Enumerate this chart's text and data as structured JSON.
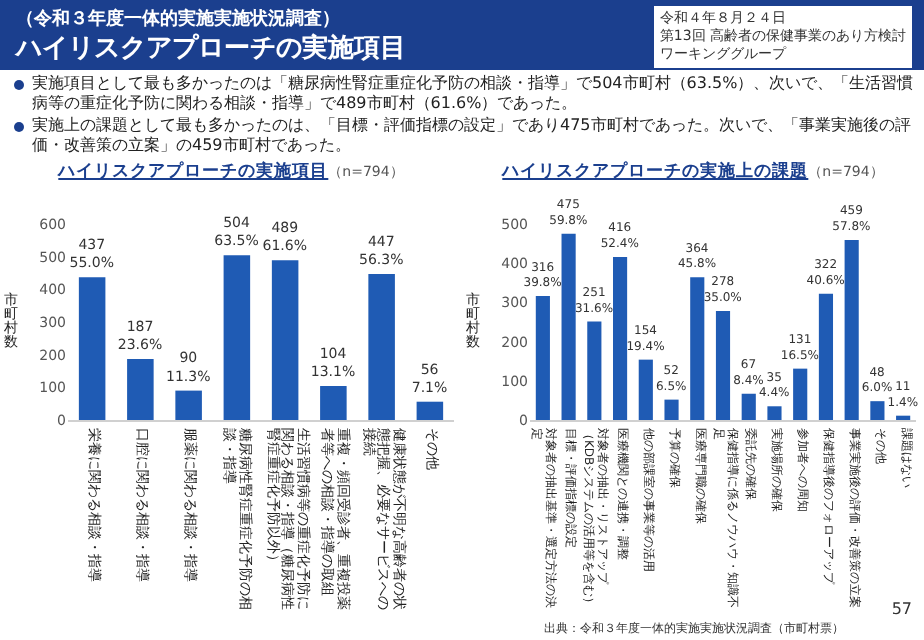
{
  "chart_data": [
    {
      "type": "bar",
      "title": "ハイリスクアプローチの実施項目",
      "subtitle": "（n=794）",
      "ylabel": "市町村数",
      "categories": [
        "栄養に関わる相談・指導",
        "口腔に関わる相談・指導",
        "服薬に関わる相談・指導",
        "糖尿病性腎症重症化予防の相談・指導",
        "生活習慣病等の重症化予防に関わる相談・指導（糖尿病性腎症重症化予防以外）",
        "重複・頻回受診者、重複投薬者等への相談・指導の取組",
        "健康状態が不明な高齢者の状態把握、必要なサービスへの接続",
        "その他"
      ],
      "values": [
        437,
        187,
        90,
        504,
        489,
        104,
        447,
        56
      ],
      "value_labels": [
        "437\n55.0%",
        "187\n23.6%",
        "90\n11.3%",
        "504\n63.5%",
        "489\n61.6%",
        "104\n13.1%",
        "447\n56.3%",
        "56\n7.1%"
      ],
      "color": "#1f5bb4",
      "ylim": [
        0,
        600
      ],
      "yticks": [
        0,
        100,
        200,
        300,
        400,
        500,
        600
      ],
      "annotations": [
        "（令和３年度一体的実施実施状況調査）",
        "ハイリスクアプローチの実施項目",
        "令和４年８月２４日",
        "第13回 高齢者の保健事業のあり方検討",
        "ワーキンググループ",
        "実施項目として最も多かったのは「糖尿病性腎症重症化予防の相談・指導」で504市町村（63.5%）、次いで、「生活習慣病等の重症化予防に関わる相談・指導」で489市町村（61.6%）であった。",
        "実施上の課題として最も多かったのは、「目標・評価指標の設定」であり475市町村であった。次いで、「事業実施後の評価・改善策の立案」の459市町村であった。"
      ]
    },
    {
      "type": "bar",
      "title": "ハイリスクアプローチの実施上の課題",
      "subtitle": "（n=794）",
      "ylabel": "市町村数",
      "categories": [
        "対象者の抽出基準・選定方法の決定",
        "目標・評価指標の設定",
        "対象者の抽出・リストアップ（KDBシステムの活用等を含む）",
        "医療機関との連携・調整",
        "他の部課室の事業等の活用",
        "予算の確保",
        "医療専門職の確保",
        "保健指導に係るノウハウ・知識不足",
        "委託先の確保",
        "実施場所の確保",
        "参加者への周知",
        "保健指導後のフォローアップ",
        "事業実施後の評価・改善策の立案",
        "その他",
        "課題はない"
      ],
      "values": [
        316,
        475,
        251,
        416,
        154,
        52,
        364,
        278,
        67,
        35,
        131,
        322,
        459,
        48,
        11
      ],
      "value_labels": [
        "316\n39.8%",
        "475\n59.8%",
        "251\n31.6%",
        "416\n52.4%",
        "154\n19.4%",
        "52\n6.5%",
        "364\n45.8%",
        "278\n35.0%",
        "67\n8.4%",
        "35\n4.4%",
        "131\n16.5%",
        "322\n40.6%",
        "459\n57.8%",
        "48\n6.0%",
        "11\n1.4%"
      ],
      "color": "#1f5bb4",
      "ylim": [
        0,
        500
      ],
      "yticks": [
        0,
        100,
        200,
        300,
        400,
        500
      ],
      "annotations": [
        "出典：令和３年度一体的実施実施状況調査（市町村票）",
        "57"
      ]
    }
  ]
}
